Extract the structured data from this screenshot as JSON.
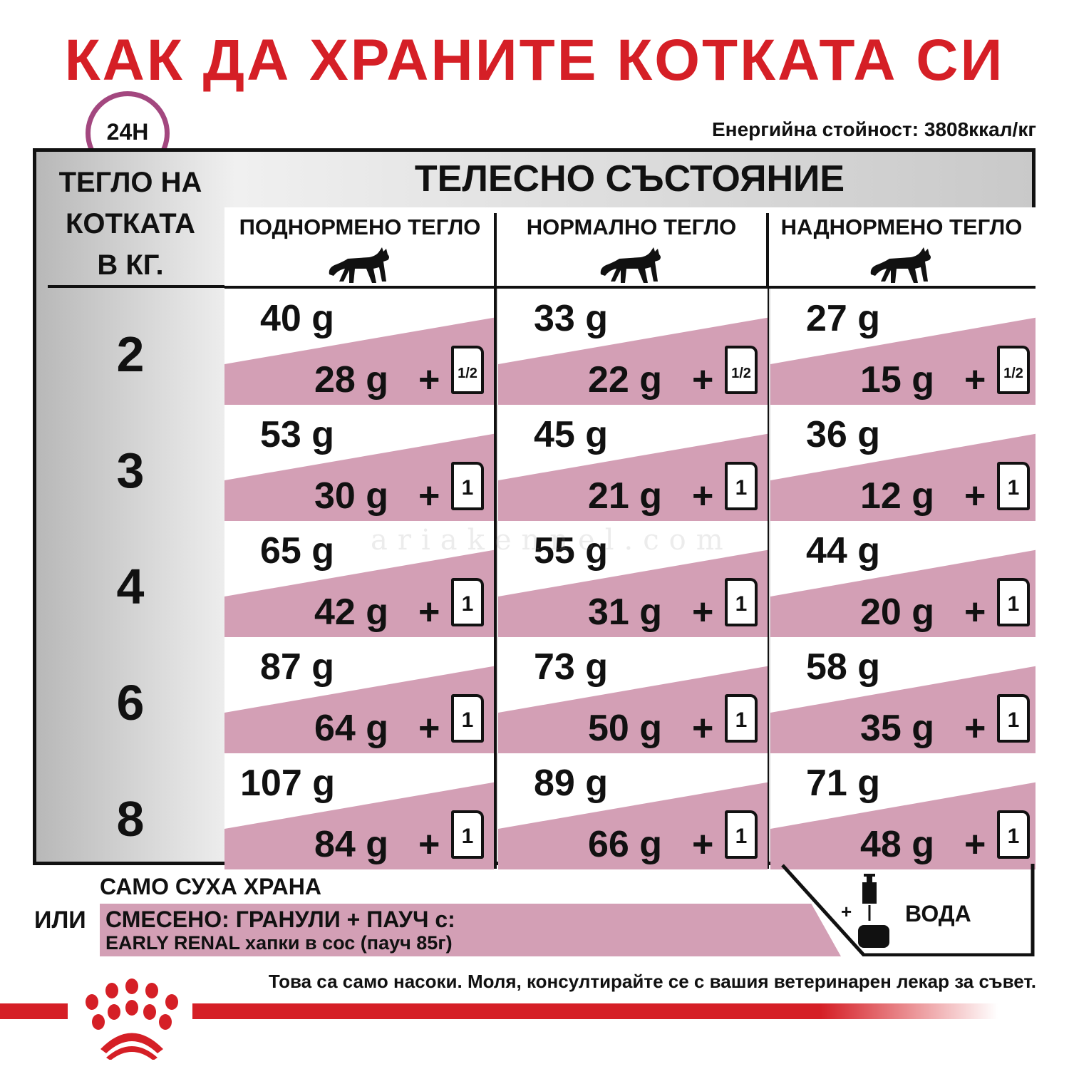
{
  "title": "КАК ДА ХРАНИТЕ КОТКАТА СИ",
  "clock_label": "24H",
  "energy": "Енергийна стойност: 3808ккал/кг",
  "table": {
    "weight_header": [
      "ТЕГЛО НА",
      "КОТКАТА",
      "В КГ."
    ],
    "body_condition": "ТЕЛЕСНО СЪСТОЯНИЕ",
    "columns": [
      "ПОДНОРМЕНО ТЕГЛО",
      "НОРМАЛНО ТЕГЛО",
      "НАДНОРМЕНО ТЕГЛО"
    ],
    "rows": [
      {
        "weight": "2",
        "cells": [
          {
            "dry": "40 g",
            "mix": "28 g",
            "pouch": "1/2"
          },
          {
            "dry": "33 g",
            "mix": "22 g",
            "pouch": "1/2"
          },
          {
            "dry": "27 g",
            "mix": "15 g",
            "pouch": "1/2"
          }
        ]
      },
      {
        "weight": "3",
        "cells": [
          {
            "dry": "53 g",
            "mix": "30 g",
            "pouch": "1"
          },
          {
            "dry": "45 g",
            "mix": "21 g",
            "pouch": "1"
          },
          {
            "dry": "36 g",
            "mix": "12 g",
            "pouch": "1"
          }
        ]
      },
      {
        "weight": "4",
        "cells": [
          {
            "dry": "65 g",
            "mix": "42 g",
            "pouch": "1"
          },
          {
            "dry": "55 g",
            "mix": "31 g",
            "pouch": "1"
          },
          {
            "dry": "44 g",
            "mix": "20 g",
            "pouch": "1"
          }
        ]
      },
      {
        "weight": "6",
        "cells": [
          {
            "dry": "87 g",
            "mix": "64 g",
            "pouch": "1"
          },
          {
            "dry": "73 g",
            "mix": "50 g",
            "pouch": "1"
          },
          {
            "dry": "58 g",
            "mix": "35 g",
            "pouch": "1"
          }
        ]
      },
      {
        "weight": "8",
        "cells": [
          {
            "dry": "107 g",
            "mix": "84 g",
            "pouch": "1"
          },
          {
            "dry": "89 g",
            "mix": "66 g",
            "pouch": "1"
          },
          {
            "dry": "71 g",
            "mix": "48 g",
            "pouch": "1"
          }
        ]
      }
    ],
    "plus": "+"
  },
  "legend": {
    "dry_only": "САМО СУХА ХРАНА",
    "or": "ИЛИ",
    "mixed_line1": "СМЕСЕНО: ГРАНУЛИ + ПАУЧ с:",
    "mixed_line2": "EARLY RENAL хапки в сос (пауч 85г)",
    "water_plus": "+",
    "water": "ВОДА"
  },
  "note": "Това са само насоки. Моля, консултирайте се с вашия ветеринарен лекар за съвет.",
  "watermark": "ariakennel.com",
  "colors": {
    "brand_red": "#d51f26",
    "pink": "#d39fb5",
    "clock": "#a3477f"
  }
}
